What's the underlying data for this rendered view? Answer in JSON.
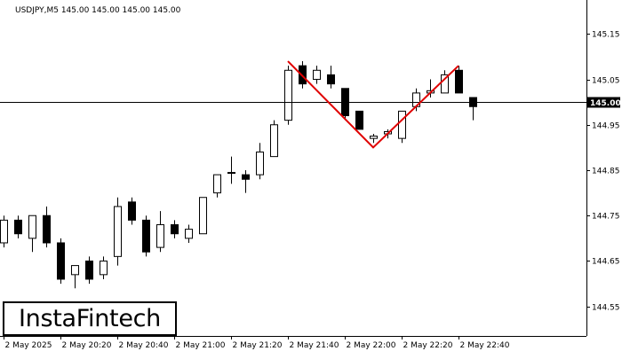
{
  "chart_data": {
    "type": "candlestick",
    "title": "USDJPY,M5  145.00 145.00 145.00 145.00",
    "ylim": [
      144.485,
      145.215
    ],
    "y_ticks": [
      "145.15",
      "145.05",
      "144.95",
      "144.85",
      "144.75",
      "144.65",
      "144.55"
    ],
    "x_ticks": [
      "2 May 2025",
      "2 May 20:20",
      "2 May 20:40",
      "2 May 21:00",
      "2 May 21:20",
      "2 May 21:40",
      "2 May 22:00",
      "2 May 22:20",
      "2 May 22:40"
    ],
    "current_price": 145.0,
    "current_price_label": "145.00",
    "candles": [
      {
        "o": 144.69,
        "h": 144.75,
        "l": 144.68,
        "c": 144.74
      },
      {
        "o": 144.74,
        "h": 144.75,
        "l": 144.7,
        "c": 144.71
      },
      {
        "o": 144.7,
        "h": 144.75,
        "l": 144.67,
        "c": 144.75
      },
      {
        "o": 144.75,
        "h": 144.77,
        "l": 144.68,
        "c": 144.69
      },
      {
        "o": 144.69,
        "h": 144.7,
        "l": 144.6,
        "c": 144.61
      },
      {
        "o": 144.62,
        "h": 144.64,
        "l": 144.59,
        "c": 144.64
      },
      {
        "o": 144.65,
        "h": 144.66,
        "l": 144.6,
        "c": 144.61
      },
      {
        "o": 144.62,
        "h": 144.66,
        "l": 144.61,
        "c": 144.65
      },
      {
        "o": 144.66,
        "h": 144.79,
        "l": 144.64,
        "c": 144.77
      },
      {
        "o": 144.78,
        "h": 144.79,
        "l": 144.73,
        "c": 144.74
      },
      {
        "o": 144.74,
        "h": 144.75,
        "l": 144.66,
        "c": 144.67
      },
      {
        "o": 144.68,
        "h": 144.76,
        "l": 144.67,
        "c": 144.73
      },
      {
        "o": 144.73,
        "h": 144.74,
        "l": 144.7,
        "c": 144.71
      },
      {
        "o": 144.7,
        "h": 144.73,
        "l": 144.69,
        "c": 144.72
      },
      {
        "o": 144.71,
        "h": 144.79,
        "l": 144.71,
        "c": 144.79
      },
      {
        "o": 144.8,
        "h": 144.84,
        "l": 144.79,
        "c": 144.84
      },
      {
        "o": 144.845,
        "h": 144.88,
        "l": 144.82,
        "c": 144.845
      },
      {
        "o": 144.84,
        "h": 144.85,
        "l": 144.8,
        "c": 144.83
      },
      {
        "o": 144.84,
        "h": 144.91,
        "l": 144.83,
        "c": 144.89
      },
      {
        "o": 144.88,
        "h": 144.96,
        "l": 144.88,
        "c": 144.95
      },
      {
        "o": 144.96,
        "h": 145.08,
        "l": 144.95,
        "c": 145.07
      },
      {
        "o": 145.08,
        "h": 145.09,
        "l": 145.03,
        "c": 145.04
      },
      {
        "o": 145.05,
        "h": 145.08,
        "l": 145.04,
        "c": 145.07
      },
      {
        "o": 145.06,
        "h": 145.08,
        "l": 145.03,
        "c": 145.04
      },
      {
        "o": 145.03,
        "h": 145.03,
        "l": 144.96,
        "c": 144.97
      },
      {
        "o": 144.98,
        "h": 144.98,
        "l": 144.94,
        "c": 144.94
      },
      {
        "o": 144.92,
        "h": 144.93,
        "l": 144.91,
        "c": 144.925
      },
      {
        "o": 144.93,
        "h": 144.94,
        "l": 144.92,
        "c": 144.935
      },
      {
        "o": 144.92,
        "h": 144.98,
        "l": 144.91,
        "c": 144.98
      },
      {
        "o": 144.99,
        "h": 145.03,
        "l": 144.98,
        "c": 145.02
      },
      {
        "o": 145.02,
        "h": 145.05,
        "l": 145.01,
        "c": 145.025
      },
      {
        "o": 145.02,
        "h": 145.07,
        "l": 145.02,
        "c": 145.06
      },
      {
        "o": 145.07,
        "h": 145.08,
        "l": 145.02,
        "c": 145.02
      },
      {
        "o": 145.01,
        "h": 145.01,
        "l": 144.96,
        "c": 144.99
      }
    ],
    "pattern": {
      "name": "Double Top",
      "color": "#e00000",
      "points": [
        {
          "candle": 20,
          "price": 145.09
        },
        {
          "candle": 26,
          "price": 144.9
        },
        {
          "candle": 32,
          "price": 145.08
        }
      ]
    },
    "colors": {
      "bull": "#ffffff",
      "bear": "#000000",
      "outline": "#000000",
      "grid": "#000000",
      "price_box": "#000000",
      "price_text": "#ffffff"
    }
  },
  "logo": {
    "text": "InstaFintech"
  }
}
